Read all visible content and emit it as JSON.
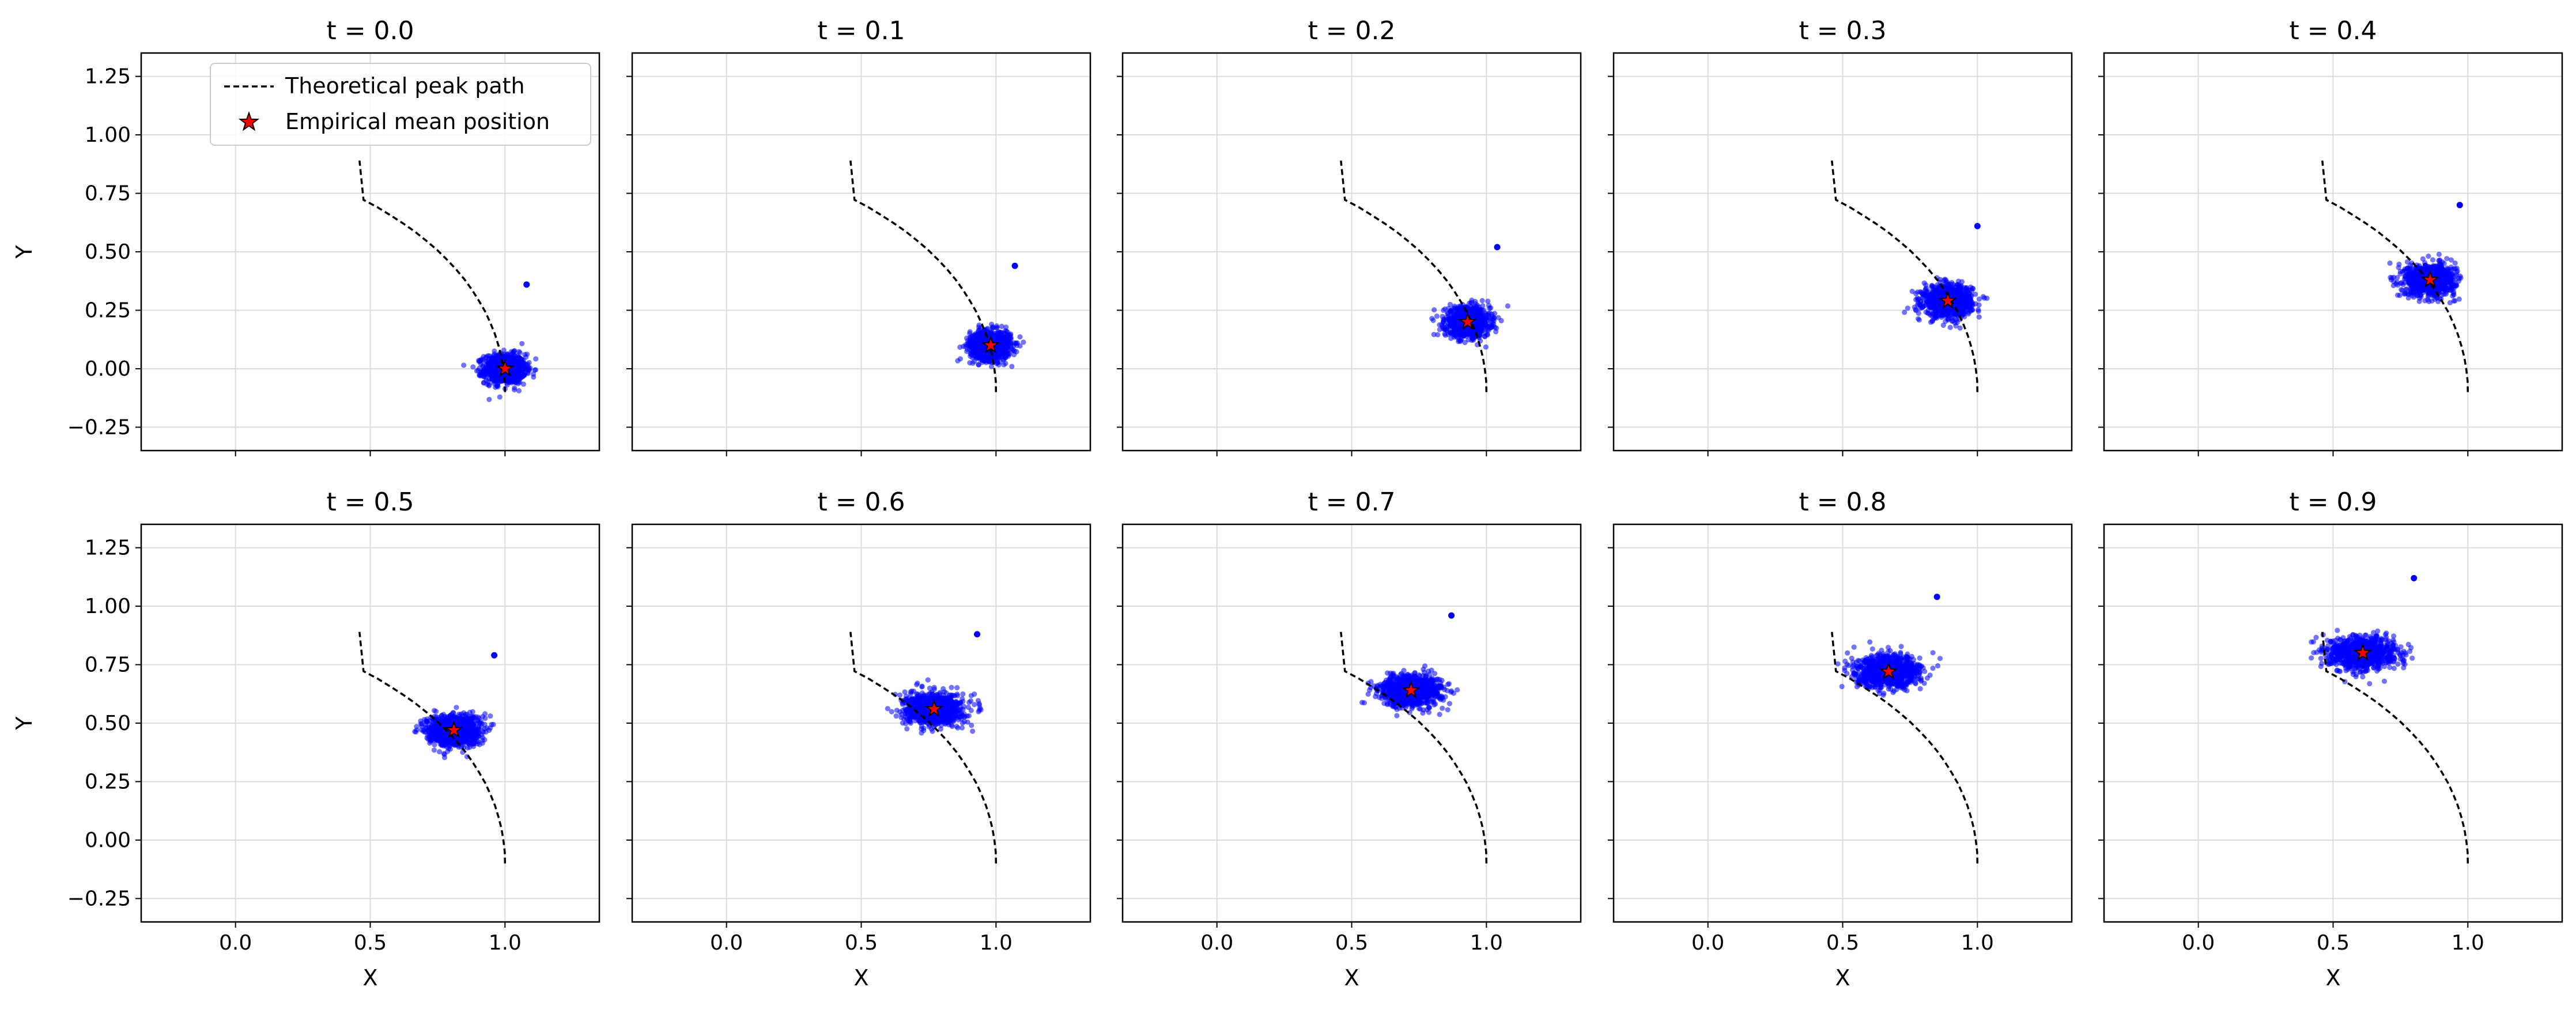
{
  "chart_data": {
    "type": "scatter",
    "layout": {
      "rows": 2,
      "cols": 5,
      "sharex": true,
      "sharey": true
    },
    "xlabel": "X",
    "ylabel": "Y",
    "xlim": [
      -0.35,
      1.35
    ],
    "ylim": [
      -0.35,
      1.35
    ],
    "xticks": [
      0.0,
      0.5,
      1.0
    ],
    "xtick_labels": [
      "0.0",
      "0.5",
      "1.0"
    ],
    "yticks": [
      -0.25,
      0.0,
      0.25,
      0.5,
      0.75,
      1.0,
      1.25
    ],
    "ytick_labels": [
      "−0.25",
      "0.00",
      "0.25",
      "0.50",
      "0.75",
      "1.00",
      "1.25"
    ],
    "grid": true,
    "legend": {
      "placement": "upper right of first panel",
      "entries": [
        "Theoretical peak path",
        "Empirical mean position"
      ]
    },
    "colors": {
      "points": "#0000ff",
      "path": "#000000",
      "mean_marker": "#ff0000",
      "mean_edge": "#000000",
      "grid": "#dcdcdc"
    },
    "theoretical_peak_path": {
      "style": "dashed",
      "x": [
        1.0,
        0.999,
        0.994,
        0.987,
        0.976,
        0.963,
        0.946,
        0.927,
        0.904,
        0.879,
        0.851,
        0.819,
        0.785,
        0.748,
        0.708,
        0.666,
        0.621,
        0.574,
        0.526,
        0.475,
        0.46
      ],
      "y": [
        -0.1,
        -0.051,
        -0.001,
        0.049,
        0.098,
        0.147,
        0.195,
        0.243,
        0.289,
        0.335,
        0.38,
        0.424,
        0.466,
        0.508,
        0.547,
        0.586,
        0.622,
        0.657,
        0.691,
        0.722,
        0.89
      ]
    },
    "panels": [
      {
        "title": "t = 0.0",
        "mean": [
          1.0,
          0.0
        ],
        "cloud_spread": [
          0.115,
          0.095
        ],
        "outlier": [
          1.08,
          0.36
        ],
        "n_points": 1000
      },
      {
        "title": "t = 0.1",
        "mean": [
          0.98,
          0.1
        ],
        "cloud_spread": [
          0.115,
          0.095
        ],
        "outlier": [
          1.07,
          0.44
        ],
        "n_points": 1000
      },
      {
        "title": "t = 0.2",
        "mean": [
          0.93,
          0.2
        ],
        "cloud_spread": [
          0.125,
          0.095
        ],
        "outlier": [
          1.04,
          0.52
        ],
        "n_points": 1000
      },
      {
        "title": "t = 0.3",
        "mean": [
          0.89,
          0.29
        ],
        "cloud_spread": [
          0.135,
          0.1
        ],
        "outlier": [
          1.0,
          0.61
        ],
        "n_points": 1000
      },
      {
        "title": "t = 0.4",
        "mean": [
          0.86,
          0.38
        ],
        "cloud_spread": [
          0.14,
          0.1
        ],
        "outlier": [
          0.97,
          0.7
        ],
        "n_points": 1000
      },
      {
        "title": "t = 0.5",
        "mean": [
          0.81,
          0.47
        ],
        "cloud_spread": [
          0.15,
          0.1
        ],
        "outlier": [
          0.96,
          0.79
        ],
        "n_points": 1000
      },
      {
        "title": "t = 0.6",
        "mean": [
          0.77,
          0.56
        ],
        "cloud_spread": [
          0.16,
          0.1
        ],
        "outlier": [
          0.93,
          0.88
        ],
        "n_points": 1000
      },
      {
        "title": "t = 0.7",
        "mean": [
          0.72,
          0.64
        ],
        "cloud_spread": [
          0.17,
          0.1
        ],
        "outlier": [
          0.87,
          0.96
        ],
        "n_points": 1000
      },
      {
        "title": "t = 0.8",
        "mean": [
          0.67,
          0.72
        ],
        "cloud_spread": [
          0.18,
          0.1
        ],
        "outlier": [
          0.85,
          1.04
        ],
        "n_points": 1000
      },
      {
        "title": "t = 0.9",
        "mean": [
          0.61,
          0.8
        ],
        "cloud_spread": [
          0.185,
          0.1
        ],
        "outlier": [
          0.8,
          1.12
        ],
        "n_points": 1000
      }
    ]
  }
}
